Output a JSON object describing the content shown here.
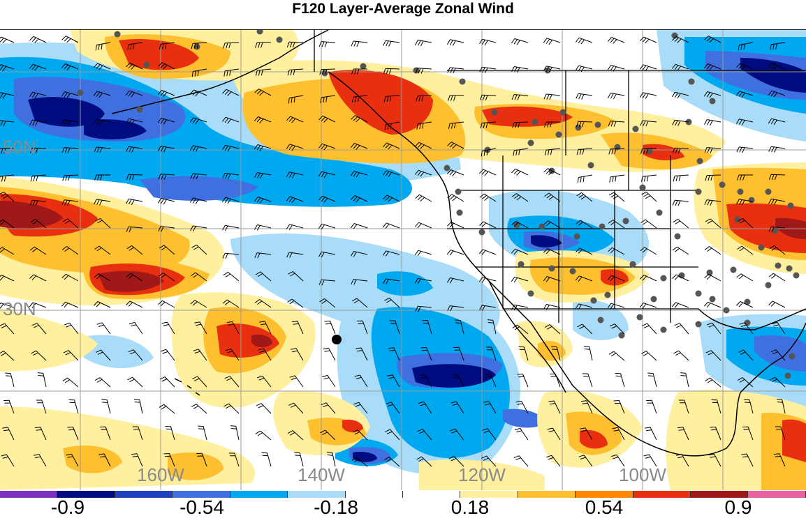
{
  "title": "F120 Layer-Average Zonal Wind",
  "map": {
    "lat_labels": [
      "50N",
      "30N"
    ],
    "lon_labels": [
      "160W",
      "140W",
      "120W",
      "100W"
    ]
  },
  "colorbar": {
    "colors": [
      "#7f2fbf",
      "#000c80",
      "#2040c0",
      "#4070e0",
      "#00a8f0",
      "#a8dcf8",
      "#ffffff",
      "#ffffff",
      "#fff0a0",
      "#ffc030",
      "#ff8800",
      "#e83010",
      "#a01818",
      "#e860a0"
    ],
    "tick_labels": [
      "-0.9",
      "-0.54",
      "-0.18",
      "0.18",
      "0.54",
      "0.9"
    ]
  },
  "markers": {
    "station_dot_color": "#555555",
    "highlight_dot_color": "#000000"
  }
}
